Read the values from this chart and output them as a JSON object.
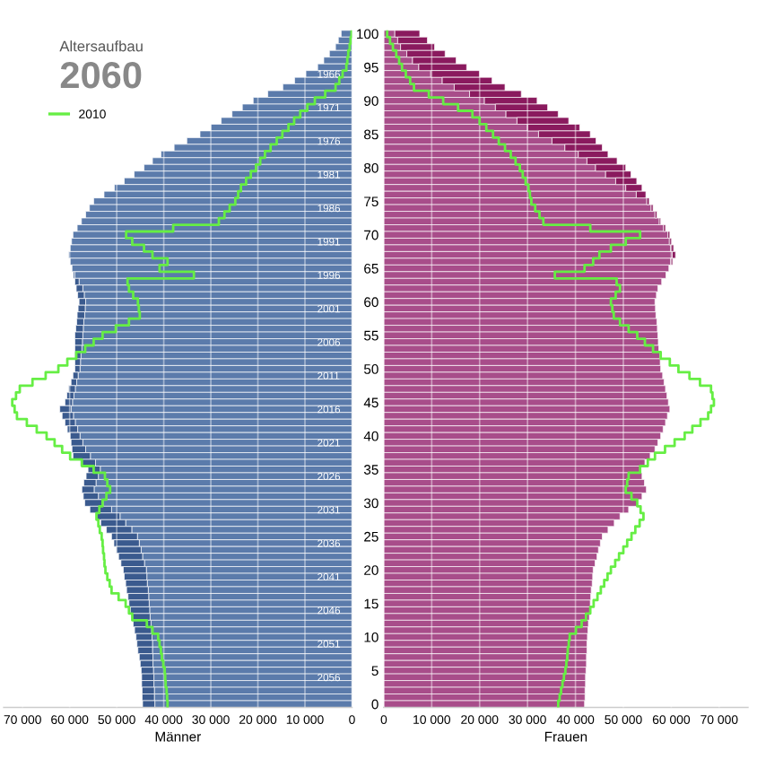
{
  "chart_data": [
    {
      "type": "bar",
      "orientation": "horizontal",
      "stacked": true,
      "title": "Altersaufbau",
      "subtitle": "2060",
      "xlabel": "Männer",
      "grid": "x",
      "legend": "top left",
      "categories": [
        null,
        null,
        null,
        null,
        null,
        null,
        "1966",
        null,
        null,
        null,
        null,
        "1971",
        null,
        null,
        null,
        null,
        "1976",
        null,
        null,
        null,
        null,
        "1981",
        null,
        null,
        null,
        null,
        "1986",
        null,
        null,
        null,
        null,
        "1991",
        null,
        null,
        null,
        null,
        "1996",
        null,
        null,
        null,
        null,
        "2001",
        null,
        null,
        null,
        null,
        "2006",
        null,
        null,
        null,
        null,
        "2011",
        null,
        null,
        null,
        null,
        "2016",
        null,
        null,
        null,
        null,
        "2021",
        null,
        null,
        null,
        null,
        "2026",
        null,
        null,
        null,
        null,
        "2031",
        null,
        null,
        null,
        null,
        "2036",
        null,
        null,
        null,
        null,
        "2041",
        null,
        null,
        null,
        null,
        "2046",
        null,
        null,
        null,
        null,
        "2051",
        null,
        null,
        null,
        null,
        "2056",
        null,
        null,
        null,
        null
      ],
      "xlim": [
        74000,
        0
      ],
      "xticks": [
        {
          "value": 70000,
          "label": "70 000"
        },
        {
          "value": 60000,
          "label": "60 000"
        },
        {
          "value": 50000,
          "label": "50 000"
        },
        {
          "value": 40000,
          "label": "40 000"
        },
        {
          "value": 30000,
          "label": "30 000"
        },
        {
          "value": 20000,
          "label": "20 000"
        },
        {
          "value": 10000,
          "label": "10 000"
        },
        0
      ],
      "series": [
        {
          "color": "#5b7bab",
          "values": [
            2300,
            2900,
            3500,
            4800,
            6000,
            7300,
            9800,
            12200,
            14700,
            17900,
            21000,
            23300,
            25500,
            27800,
            30000,
            32300,
            35100,
            37800,
            40600,
            42400,
            44200,
            46300,
            48400,
            50500,
            52700,
            54900,
            55800,
            56600,
            57500,
            58400,
            59300,
            59600,
            59900,
            60200,
            59900,
            59500,
            58900,
            58000,
            57200,
            56900,
            56600,
            56700,
            56800,
            57000,
            57100,
            57200,
            57300,
            57400,
            57600,
            57700,
            57800,
            58200,
            58500,
            58800,
            59100,
            59400,
            59700,
            59200,
            58800,
            58300,
            57800,
            57200,
            56600,
            55600,
            54500,
            53500,
            53900,
            54400,
            54800,
            53900,
            52900,
            51100,
            49300,
            48100,
            46800,
            45600,
            45200,
            44800,
            44500,
            44100,
            43700,
            43600,
            43500,
            43300,
            43200,
            43100,
            43000,
            42900,
            42700,
            42600,
            42500,
            42400,
            42400,
            42300,
            42300,
            42200,
            42100,
            42100,
            42000,
            42000,
            41900
          ]
        },
        {
          "color": "#3a5a8e",
          "values": [
            0,
            0,
            0,
            0,
            0,
            0,
            0,
            0,
            0,
            0,
            0,
            0,
            0,
            0,
            0,
            0,
            0,
            0,
            0,
            0,
            0,
            0,
            0,
            0,
            0,
            0,
            0,
            0,
            0,
            0,
            0,
            0,
            0,
            0,
            0,
            0,
            300,
            900,
            1400,
            1400,
            1400,
            1500,
            1600,
            1500,
            1600,
            1700,
            1600,
            1500,
            1300,
            1200,
            1100,
            1100,
            1200,
            1400,
            1500,
            1600,
            2400,
            2400,
            2200,
            2200,
            2100,
            2500,
            2900,
            3700,
            3200,
            2600,
            2600,
            2600,
            2600,
            3200,
            3900,
            4600,
            5200,
            5300,
            5400,
            5500,
            5400,
            5300,
            5100,
            5000,
            4900,
            4800,
            4600,
            4600,
            4400,
            4300,
            4100,
            3900,
            3800,
            3600,
            3400,
            3300,
            3100,
            2900,
            2700,
            2600,
            2600,
            2600,
            2600,
            2600,
            2600
          ]
        },
        {
          "type": "step",
          "name": "2010",
          "color": "#66ee44",
          "values": [
            100,
            300,
            500,
            800,
            1000,
            1200,
            2000,
            2700,
            3500,
            5700,
            7900,
            9500,
            11000,
            12300,
            13500,
            14800,
            16000,
            17300,
            18500,
            19500,
            20400,
            21500,
            22500,
            23600,
            24200,
            24800,
            26000,
            27100,
            28300,
            38000,
            48000,
            46700,
            44200,
            42400,
            39200,
            40900,
            33600,
            47700,
            47400,
            46500,
            45500,
            45300,
            45100,
            47400,
            50200,
            53000,
            54900,
            56700,
            58600,
            60500,
            62400,
            65100,
            67900,
            70600,
            71400,
            72200,
            71700,
            71200,
            69100,
            67000,
            64900,
            63200,
            61600,
            59900,
            57400,
            54900,
            52500,
            52000,
            51400,
            52200,
            53000,
            53700,
            54300,
            53900,
            53600,
            53200,
            53000,
            52900,
            52700,
            52600,
            52400,
            52000,
            51500,
            51100,
            49600,
            48100,
            47400,
            46700,
            43600,
            42400,
            41200,
            40900,
            40600,
            40400,
            40100,
            39800,
            39700,
            39600,
            39400,
            39300,
            39200
          ]
        }
      ]
    },
    {
      "type": "bar",
      "orientation": "horizontal",
      "stacked": true,
      "xlabel": "Frauen",
      "grid": "x",
      "categories": [
        "100",
        null,
        null,
        null,
        null,
        "95",
        null,
        null,
        null,
        null,
        "90",
        null,
        null,
        null,
        null,
        "85",
        null,
        null,
        null,
        null,
        "80",
        null,
        null,
        null,
        null,
        "75",
        null,
        null,
        null,
        null,
        "70",
        null,
        null,
        null,
        null,
        "65",
        null,
        null,
        null,
        null,
        "60",
        null,
        null,
        null,
        null,
        "55",
        null,
        null,
        null,
        null,
        "50",
        null,
        null,
        null,
        null,
        "45",
        null,
        null,
        null,
        null,
        "40",
        null,
        null,
        null,
        null,
        "35",
        null,
        null,
        null,
        null,
        "30",
        null,
        null,
        null,
        null,
        "25",
        null,
        null,
        null,
        null,
        "20",
        null,
        null,
        null,
        null,
        "15",
        null,
        null,
        null,
        null,
        "10",
        null,
        null,
        null,
        null,
        "5",
        null,
        null,
        null,
        null,
        "0"
      ],
      "xlim": [
        0,
        76000
      ],
      "xticks": [
        0,
        {
          "value": 10000,
          "label": "10 000"
        },
        {
          "value": 20000,
          "label": "20 000"
        },
        {
          "value": 30000,
          "label": "30 000"
        },
        {
          "value": 40000,
          "label": "40 000"
        },
        {
          "value": 50000,
          "label": "50 000"
        },
        {
          "value": 60000,
          "label": "60 000"
        },
        {
          "value": 70000,
          "label": "70 000"
        }
      ],
      "series": [
        {
          "color": "#a84d8a",
          "values": [
            2300,
            2900,
            3500,
            4800,
            6000,
            7300,
            9800,
            12200,
            14700,
            17900,
            21000,
            23300,
            25500,
            27800,
            30000,
            32300,
            35100,
            37800,
            40600,
            42400,
            44200,
            46300,
            48400,
            50500,
            52700,
            54900,
            55800,
            56600,
            57500,
            58400,
            59300,
            59600,
            59900,
            60200,
            59900,
            59500,
            58900,
            58000,
            57200,
            56900,
            56600,
            56700,
            56800,
            57000,
            57100,
            57200,
            57300,
            57400,
            57600,
            57700,
            57800,
            58200,
            58500,
            58800,
            59100,
            59400,
            59700,
            59200,
            58800,
            58300,
            57800,
            57200,
            56600,
            55600,
            54500,
            53500,
            53900,
            54400,
            54800,
            53900,
            52900,
            51100,
            49300,
            48100,
            46800,
            45600,
            45200,
            44800,
            44500,
            44100,
            43700,
            43600,
            43500,
            43300,
            43200,
            43100,
            43000,
            42900,
            42700,
            42600,
            42500,
            42400,
            42400,
            42300,
            42300,
            42200,
            42100,
            42100,
            42000,
            42000,
            41900
          ]
        },
        {
          "color": "#8a1a5e",
          "values": [
            5200,
            6200,
            7100,
            8000,
            9100,
            10000,
            10200,
            10400,
            10600,
            10800,
            11000,
            10900,
            10900,
            10800,
            10900,
            10800,
            9200,
            7800,
            6200,
            6300,
            6300,
            5300,
            4400,
            3400,
            2000,
            500,
            400,
            400,
            300,
            400,
            400,
            500,
            600,
            700,
            400,
            null,
            0,
            0,
            0,
            0,
            0,
            0,
            0,
            0,
            0,
            0,
            0,
            0,
            0,
            0,
            0,
            0,
            0,
            0,
            0,
            0,
            0,
            0,
            0,
            0,
            0,
            0,
            0,
            0,
            0,
            0,
            0,
            0,
            0,
            0,
            0,
            0,
            0,
            0,
            0,
            0,
            0,
            0,
            0,
            0,
            0,
            0,
            0,
            0,
            0,
            0,
            0,
            0,
            0,
            0,
            0,
            0,
            0,
            0,
            0,
            0,
            0,
            0,
            0,
            0,
            0
          ]
        },
        {
          "type": "step",
          "color": "#66ee44",
          "values": [
            700,
            1300,
            1900,
            2600,
            3200,
            3800,
            4600,
            5500,
            6300,
            9400,
            12400,
            15500,
            18500,
            20000,
            21400,
            22800,
            24000,
            25300,
            26500,
            27500,
            28400,
            29000,
            29600,
            30200,
            30500,
            30800,
            31600,
            32500,
            33300,
            43100,
            53500,
            50500,
            47400,
            45000,
            43700,
            41900,
            35700,
            48600,
            49300,
            48400,
            47400,
            47700,
            48000,
            49300,
            51100,
            52900,
            54500,
            56200,
            57800,
            59700,
            61500,
            63800,
            66000,
            68300,
            68600,
            68900,
            68300,
            67700,
            66100,
            64400,
            62800,
            60700,
            58700,
            56600,
            55100,
            53500,
            51100,
            50800,
            50500,
            51700,
            52900,
            53600,
            54200,
            53400,
            52500,
            51700,
            50800,
            50000,
            49100,
            48300,
            47400,
            46700,
            46000,
            45300,
            44600,
            43800,
            43100,
            42200,
            41300,
            40100,
            38800,
            38600,
            38400,
            38300,
            38100,
            37900,
            37600,
            37300,
            37000,
            36700,
            36400
          ]
        }
      ]
    }
  ]
}
